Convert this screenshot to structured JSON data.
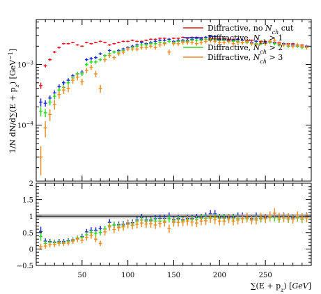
{
  "chart_data": [
    {
      "type": "scatter",
      "panel": "main",
      "title": "",
      "xlabel": "",
      "ylabel": "1/N dN/d∑(E + p_z) [GeV⁻¹]",
      "ylabel_parts": {
        "a": "1/N dN/d",
        "b": "∑(E + p",
        "c": "z",
        "d": ") [GeV",
        "e": "−1",
        "f": "]"
      },
      "x_scale": "linear",
      "y_scale": "log",
      "xlim": [
        0,
        300
      ],
      "ylim": [
        1.2e-05,
        0.0055
      ],
      "y_tick_labels": [
        {
          "value": 0.001,
          "base": "10",
          "exp": "−3"
        },
        {
          "value": 0.0001,
          "base": "10",
          "exp": "−4"
        }
      ],
      "legend_position": "top-right",
      "series": [
        {
          "name": "Diffractive, no N_ch cut",
          "name_parts": {
            "a": "Diffractive, no ",
            "b": "N",
            "c": "ch",
            "d": " cut"
          },
          "color": "#e8141e",
          "x": [
            5,
            10,
            15,
            20,
            25,
            30,
            35,
            40,
            45,
            50,
            55,
            60,
            65,
            70,
            75,
            80,
            85,
            90,
            95,
            100,
            105,
            110,
            115,
            120,
            125,
            130,
            135,
            140,
            145,
            150,
            155,
            160,
            165,
            170,
            175,
            180,
            185,
            190,
            195,
            200,
            205,
            210,
            215,
            220,
            225,
            230,
            235,
            240,
            245,
            250,
            255,
            260,
            265,
            270,
            275,
            280,
            285,
            290,
            295
          ],
          "y": [
            0.00045,
            0.00095,
            0.0012,
            0.0016,
            0.0019,
            0.0022,
            0.0022,
            0.0023,
            0.0021,
            0.002,
            0.0023,
            0.0022,
            0.0023,
            0.0024,
            0.0023,
            0.0021,
            0.0022,
            0.0023,
            0.0024,
            0.0024,
            0.0025,
            0.0024,
            0.0024,
            0.0025,
            0.0026,
            0.0026,
            0.0027,
            0.0027,
            0.0026,
            0.0027,
            0.0027,
            0.0028,
            0.0027,
            0.0028,
            0.0028,
            0.0027,
            0.0028,
            0.0027,
            0.0027,
            0.0027,
            0.0027,
            0.0026,
            0.0026,
            0.0026,
            0.0025,
            0.0025,
            0.0025,
            0.0024,
            0.0024,
            0.0024,
            0.0024,
            0.0023,
            0.0023,
            0.0022,
            0.0022,
            0.0022,
            0.0021,
            0.0021,
            0.002
          ],
          "err": [
            0.12,
            0.06,
            0.05,
            0.04,
            0.04,
            0.03,
            0.03,
            0.03,
            0.03,
            0.03,
            0.03,
            0.03,
            0.03,
            0.03,
            0.03,
            0.03,
            0.03,
            0.03,
            0.03,
            0.03,
            0.03,
            0.03,
            0.03,
            0.03,
            0.03,
            0.03,
            0.03,
            0.03,
            0.03,
            0.03,
            0.03,
            0.03,
            0.03,
            0.03,
            0.03,
            0.03,
            0.03,
            0.03,
            0.03,
            0.03,
            0.03,
            0.03,
            0.03,
            0.03,
            0.03,
            0.03,
            0.03,
            0.03,
            0.03,
            0.03,
            0.03,
            0.03,
            0.03,
            0.03,
            0.03,
            0.03,
            0.03,
            0.03,
            0.03
          ]
        },
        {
          "name": "Diffractive, N_ch > 1",
          "name_parts": {
            "a": "Diffractive, ",
            "b": "N",
            "c": "ch",
            "d": " > 1"
          },
          "color": "#1e28d2",
          "x": [
            5,
            10,
            15,
            20,
            25,
            30,
            35,
            40,
            45,
            50,
            55,
            60,
            65,
            70,
            75,
            80,
            85,
            90,
            95,
            100,
            105,
            110,
            115,
            120,
            125,
            130,
            135,
            140,
            145,
            150,
            155,
            160,
            165,
            170,
            175,
            180,
            185,
            190,
            195,
            200,
            205,
            210,
            215,
            220,
            225,
            230,
            235,
            240,
            245,
            250,
            255,
            260,
            265,
            270,
            275,
            280,
            285,
            290,
            295
          ],
          "y": [
            0.00024,
            0.00023,
            0.00028,
            0.00034,
            0.00043,
            0.0005,
            0.00055,
            0.00065,
            0.0007,
            0.00075,
            0.0012,
            0.00125,
            0.0013,
            0.0015,
            0.0014,
            0.0017,
            0.0016,
            0.0017,
            0.0018,
            0.0019,
            0.002,
            0.0021,
            0.0023,
            0.0022,
            0.0023,
            0.0024,
            0.0025,
            0.0025,
            0.0026,
            0.0024,
            0.0025,
            0.0025,
            0.0025,
            0.0026,
            0.0027,
            0.0026,
            0.0028,
            0.0029,
            0.0029,
            0.0026,
            0.0026,
            0.0025,
            0.0025,
            0.0026,
            0.0025,
            0.0024,
            0.0023,
            0.0024,
            0.0022,
            0.0023,
            0.0024,
            0.0023,
            0.0022,
            0.0022,
            0.0021,
            0.0021,
            0.002,
            0.002,
            0.002
          ],
          "err": [
            0.15,
            0.12,
            0.1,
            0.1,
            0.09,
            0.08,
            0.08,
            0.07,
            0.07,
            0.07,
            0.06,
            0.06,
            0.06,
            0.05,
            0.05,
            0.05,
            0.05,
            0.05,
            0.05,
            0.05,
            0.05,
            0.05,
            0.05,
            0.05,
            0.05,
            0.05,
            0.05,
            0.05,
            0.05,
            0.05,
            0.05,
            0.05,
            0.05,
            0.05,
            0.05,
            0.05,
            0.05,
            0.05,
            0.05,
            0.05,
            0.05,
            0.05,
            0.05,
            0.05,
            0.05,
            0.05,
            0.05,
            0.05,
            0.05,
            0.05,
            0.05,
            0.05,
            0.05,
            0.05,
            0.05,
            0.05,
            0.05,
            0.05,
            0.05
          ]
        },
        {
          "name": "Diffractive, N_ch > 2",
          "name_parts": {
            "a": "Diffractive, ",
            "b": "N",
            "c": "ch",
            "d": " > 2"
          },
          "color": "#28dc1e",
          "x": [
            5,
            10,
            15,
            20,
            25,
            30,
            35,
            40,
            45,
            50,
            55,
            60,
            65,
            70,
            75,
            80,
            85,
            90,
            95,
            100,
            105,
            110,
            115,
            120,
            125,
            130,
            135,
            140,
            145,
            150,
            155,
            160,
            165,
            170,
            175,
            180,
            185,
            190,
            195,
            200,
            205,
            210,
            215,
            220,
            225,
            230,
            235,
            240,
            245,
            250,
            255,
            260,
            265,
            270,
            275,
            280,
            285,
            290,
            295
          ],
          "y": [
            0.00017,
            0.00016,
            0.00024,
            0.0003,
            0.00038,
            0.00042,
            0.0005,
            0.0006,
            0.0007,
            0.0007,
            0.001,
            0.0011,
            0.0011,
            0.0012,
            0.0014,
            0.0015,
            0.0016,
            0.0016,
            0.0017,
            0.0018,
            0.0019,
            0.002,
            0.0021,
            0.0021,
            0.0022,
            0.0022,
            0.0023,
            0.0023,
            0.0024,
            0.0023,
            0.0024,
            0.0024,
            0.0024,
            0.0025,
            0.0025,
            0.0025,
            0.0026,
            0.0026,
            0.0026,
            0.0025,
            0.0025,
            0.0024,
            0.0024,
            0.0024,
            0.0023,
            0.0023,
            0.0022,
            0.0022,
            0.0022,
            0.0022,
            0.0023,
            0.0022,
            0.0021,
            0.0021,
            0.002,
            0.002,
            0.002,
            0.0019,
            0.0019
          ],
          "err": [
            0.18,
            0.15,
            0.12,
            0.11,
            0.1,
            0.09,
            0.09,
            0.08,
            0.08,
            0.08,
            0.07,
            0.07,
            0.07,
            0.06,
            0.06,
            0.06,
            0.06,
            0.06,
            0.06,
            0.06,
            0.06,
            0.06,
            0.06,
            0.06,
            0.06,
            0.06,
            0.06,
            0.06,
            0.06,
            0.06,
            0.06,
            0.06,
            0.06,
            0.06,
            0.06,
            0.06,
            0.06,
            0.06,
            0.06,
            0.06,
            0.06,
            0.06,
            0.06,
            0.06,
            0.06,
            0.06,
            0.06,
            0.06,
            0.06,
            0.06,
            0.06,
            0.06,
            0.06,
            0.06,
            0.06,
            0.06,
            0.06,
            0.06,
            0.06
          ]
        },
        {
          "name": "Diffractive, N_ch > 3",
          "name_parts": {
            "a": "Diffractive, ",
            "b": "N",
            "c": "ch",
            "d": " > 3"
          },
          "color": "#f08c1e",
          "x": [
            5,
            10,
            15,
            20,
            25,
            30,
            35,
            40,
            45,
            50,
            55,
            60,
            65,
            70,
            75,
            80,
            85,
            90,
            95,
            100,
            105,
            110,
            115,
            120,
            125,
            130,
            135,
            140,
            145,
            150,
            155,
            160,
            165,
            170,
            175,
            180,
            185,
            190,
            195,
            200,
            205,
            210,
            215,
            220,
            225,
            230,
            235,
            240,
            245,
            250,
            255,
            260,
            265,
            270,
            275,
            280,
            285,
            290,
            295
          ],
          "y": [
            3e-05,
            9e-05,
            0.00015,
            0.00022,
            0.00032,
            0.00038,
            0.0004,
            0.00055,
            0.00062,
            0.00052,
            0.0008,
            0.0009,
            0.0007,
            0.0004,
            0.0012,
            0.0014,
            0.0013,
            0.0015,
            0.0016,
            0.0018,
            0.0018,
            0.0018,
            0.0019,
            0.0019,
            0.002,
            0.0019,
            0.0021,
            0.0022,
            0.0016,
            0.0022,
            0.0022,
            0.0023,
            0.0023,
            0.0023,
            0.0022,
            0.0023,
            0.0024,
            0.0025,
            0.0024,
            0.0023,
            0.0023,
            0.0024,
            0.0022,
            0.0023,
            0.0023,
            0.0024,
            0.0022,
            0.0021,
            0.0023,
            0.0022,
            0.0024,
            0.0025,
            0.0022,
            0.0021,
            0.0021,
            0.002,
            0.0021,
            0.002,
            0.0019
          ],
          "err": [
            0.5,
            0.3,
            0.22,
            0.18,
            0.15,
            0.14,
            0.13,
            0.12,
            0.12,
            0.12,
            0.1,
            0.1,
            0.12,
            0.15,
            0.09,
            0.08,
            0.08,
            0.08,
            0.08,
            0.08,
            0.08,
            0.08,
            0.08,
            0.08,
            0.08,
            0.08,
            0.08,
            0.08,
            0.1,
            0.08,
            0.08,
            0.08,
            0.08,
            0.08,
            0.08,
            0.08,
            0.08,
            0.08,
            0.08,
            0.08,
            0.08,
            0.08,
            0.08,
            0.08,
            0.08,
            0.08,
            0.08,
            0.08,
            0.08,
            0.08,
            0.08,
            0.08,
            0.08,
            0.08,
            0.08,
            0.08,
            0.08,
            0.08,
            0.08
          ]
        }
      ]
    },
    {
      "type": "scatter",
      "panel": "ratio",
      "title": "",
      "xlabel": "∑(E + p_z) [GeV]",
      "xlabel_parts": {
        "a": "∑(E + p",
        "b": "z",
        "c": ") [",
        "d": "GeV",
        "e": "]"
      },
      "ylabel": "",
      "x_scale": "linear",
      "y_scale": "linear",
      "xlim": [
        0,
        300
      ],
      "ylim": [
        -0.5,
        2
      ],
      "x_ticks": [
        50,
        100,
        150,
        200,
        250
      ],
      "y_ticks": [
        -0.5,
        0,
        0.5,
        1,
        1.5,
        2
      ],
      "y_tick_labels": [
        "−0.5",
        "0",
        "0.5",
        "1",
        "1.5",
        "2"
      ],
      "reference_line": 1,
      "reference_band": [
        0.93,
        1.07
      ],
      "series_colors": [
        "#1e28d2",
        "#28dc1e",
        "#f08c1e"
      ],
      "series_names": [
        "Diffractive, N_ch > 1",
        "Diffractive, N_ch > 2",
        "Diffractive, N_ch > 3"
      ],
      "ratios": [
        [
          0.53,
          0.24,
          0.23,
          0.21,
          0.23,
          0.23,
          0.25,
          0.28,
          0.33,
          0.38,
          0.52,
          0.57,
          0.57,
          0.62,
          0.61,
          0.81,
          0.73,
          0.74,
          0.75,
          0.79,
          0.8,
          0.88,
          0.96,
          0.88,
          0.88,
          0.92,
          0.93,
          0.93,
          1.0,
          0.89,
          0.93,
          0.89,
          0.93,
          0.93,
          0.96,
          0.96,
          1.0,
          1.07,
          1.07,
          0.96,
          0.96,
          0.96,
          0.96,
          1.0,
          1.0,
          0.96,
          0.92,
          1.0,
          0.92,
          0.96,
          1.0,
          1.0,
          0.96,
          1.0,
          0.95,
          0.95,
          0.95,
          0.95,
          1.0
        ],
        [
          0.38,
          0.17,
          0.2,
          0.19,
          0.2,
          0.19,
          0.23,
          0.26,
          0.33,
          0.35,
          0.43,
          0.5,
          0.48,
          0.5,
          0.61,
          0.71,
          0.73,
          0.7,
          0.71,
          0.75,
          0.76,
          0.83,
          0.88,
          0.84,
          0.85,
          0.85,
          0.85,
          0.85,
          0.92,
          0.85,
          0.89,
          0.86,
          0.89,
          0.89,
          0.89,
          0.93,
          0.93,
          0.96,
          0.96,
          0.93,
          0.93,
          0.92,
          0.92,
          0.92,
          0.92,
          0.92,
          0.88,
          0.92,
          0.92,
          0.92,
          0.96,
          0.96,
          0.91,
          0.95,
          0.91,
          0.91,
          0.95,
          0.9,
          0.95
        ],
        [
          0.07,
          0.09,
          0.13,
          0.14,
          0.17,
          0.17,
          0.18,
          0.24,
          0.3,
          0.26,
          0.35,
          0.41,
          0.3,
          0.17,
          0.52,
          0.67,
          0.59,
          0.65,
          0.67,
          0.75,
          0.72,
          0.75,
          0.79,
          0.76,
          0.77,
          0.73,
          0.78,
          0.81,
          0.62,
          0.81,
          0.81,
          0.82,
          0.85,
          0.82,
          0.79,
          0.85,
          0.86,
          0.93,
          0.89,
          0.85,
          0.85,
          0.92,
          0.85,
          0.88,
          0.92,
          0.96,
          0.88,
          0.88,
          0.96,
          0.92,
          1.0,
          1.09,
          0.96,
          0.95,
          0.95,
          0.91,
          1.0,
          0.95,
          0.95
        ]
      ]
    }
  ]
}
